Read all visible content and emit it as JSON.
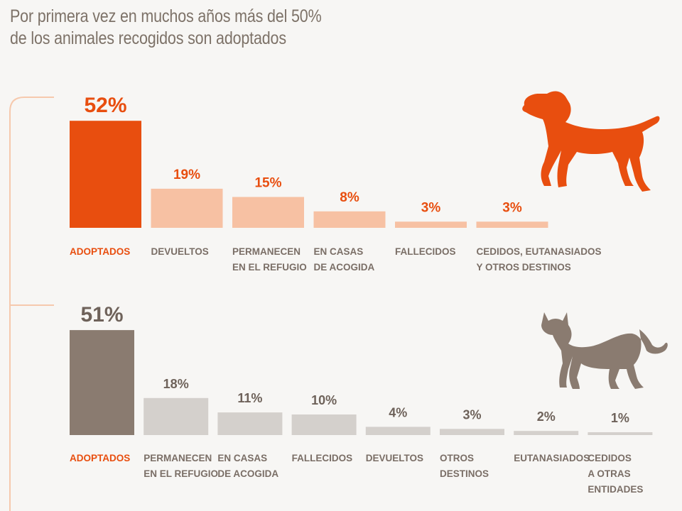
{
  "title_line1": "Por primera vez en muchos años más del 50%",
  "title_line2": "de los animales recogidos son adoptados",
  "colors": {
    "dog_primary": "#e84e0f",
    "dog_secondary": "#f7c1a3",
    "cat_primary": "#8a7b70",
    "cat_secondary": "#d4d0cc",
    "title": "#7d7268",
    "pct_cat": "#6e625a",
    "bracket": "#f6c9ad"
  },
  "icons": [
    "dog-icon",
    "cat-icon"
  ],
  "chart_data": [
    {
      "type": "bar",
      "categories": [
        [
          "ADOPTADOS"
        ],
        [
          "DEVUELTOS"
        ],
        [
          "PERMANECEN",
          "EN EL REFUGIO"
        ],
        [
          "EN CASAS",
          "DE ACOGIDA"
        ],
        [
          "FALLECIDOS"
        ],
        [
          "CEDIDOS, EUTANASIADOS",
          "Y OTROS DESTINOS"
        ]
      ],
      "values": [
        52,
        19,
        15,
        8,
        3,
        3
      ],
      "labels": [
        "52%",
        "19%",
        "15%",
        "8%",
        "3%",
        "3%"
      ],
      "highlight_index": 0
    },
    {
      "type": "bar",
      "categories": [
        [
          "ADOPTADOS"
        ],
        [
          "PERMANECEN",
          "EN EL REFUGIO"
        ],
        [
          "EN CASAS",
          "DE ACOGIDA"
        ],
        [
          "FALLECIDOS"
        ],
        [
          "DEVUELTOS"
        ],
        [
          "OTROS",
          "DESTINOS"
        ],
        [
          "EUTANASIADOS"
        ],
        [
          "CEDIDOS",
          "A OTRAS",
          "ENTIDADES"
        ]
      ],
      "values": [
        51,
        18,
        11,
        10,
        4,
        3,
        2,
        1
      ],
      "labels": [
        "51%",
        "18%",
        "11%",
        "10%",
        "4%",
        "3%",
        "2%",
        "1%"
      ],
      "highlight_index": 0
    }
  ]
}
